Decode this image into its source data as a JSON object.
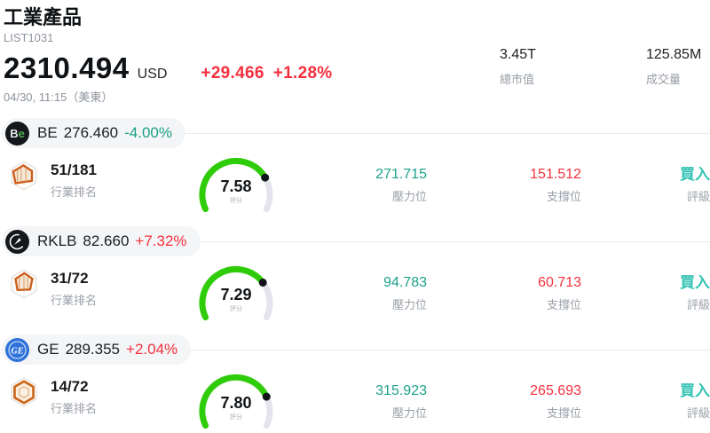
{
  "colors": {
    "red": "#f5303e",
    "teal": "#1ca189",
    "buy_teal": "#36c3b4",
    "gauge_green": "#2fcc0a",
    "gauge_track": "#e4e4ec",
    "gauge_dot": "#111418",
    "be_logo_bg": "#14171b",
    "be_logo_accent": "#4caf50",
    "rklb_logo_bg": "#14171b",
    "ge_logo_bg": "#2e72da"
  },
  "header": {
    "title": "工業產品",
    "code": "LIST1031",
    "price": "2310.494",
    "currency": "USD",
    "change": "+29.466",
    "change_pct": "+1.28%",
    "time": "04/30, 11:15（美東）",
    "market_cap": {
      "value": "3.45T",
      "label": "總市值"
    },
    "volume": {
      "value": "125.85M",
      "label": "成交量"
    }
  },
  "labels": {
    "rank": "行業排名",
    "score": "評分",
    "resistance": "壓力位",
    "support": "支撐位",
    "rating": "評級"
  },
  "stocks": [
    {
      "ticker": "BE",
      "logo": {
        "t1": "B",
        "t2": "e"
      },
      "price": "276.460",
      "change_pct": "-4.00%",
      "direction": "down",
      "rank": "51/181",
      "score": "7.58",
      "score_value": 7.58,
      "resistance": "271.715",
      "support": "151.512",
      "rating": "買入"
    },
    {
      "ticker": "RKLB",
      "logo": {},
      "price": "82.660",
      "change_pct": "+7.32%",
      "direction": "up",
      "rank": "31/72",
      "score": "7.29",
      "score_value": 7.29,
      "resistance": "94.783",
      "support": "60.713",
      "rating": "買入"
    },
    {
      "ticker": "GE",
      "logo": {
        "t1": "GE"
      },
      "price": "289.355",
      "change_pct": "+2.04%",
      "direction": "up",
      "rank": "14/72",
      "score": "7.80",
      "score_value": 7.8,
      "resistance": "315.923",
      "support": "265.693",
      "rating": "買入"
    }
  ]
}
